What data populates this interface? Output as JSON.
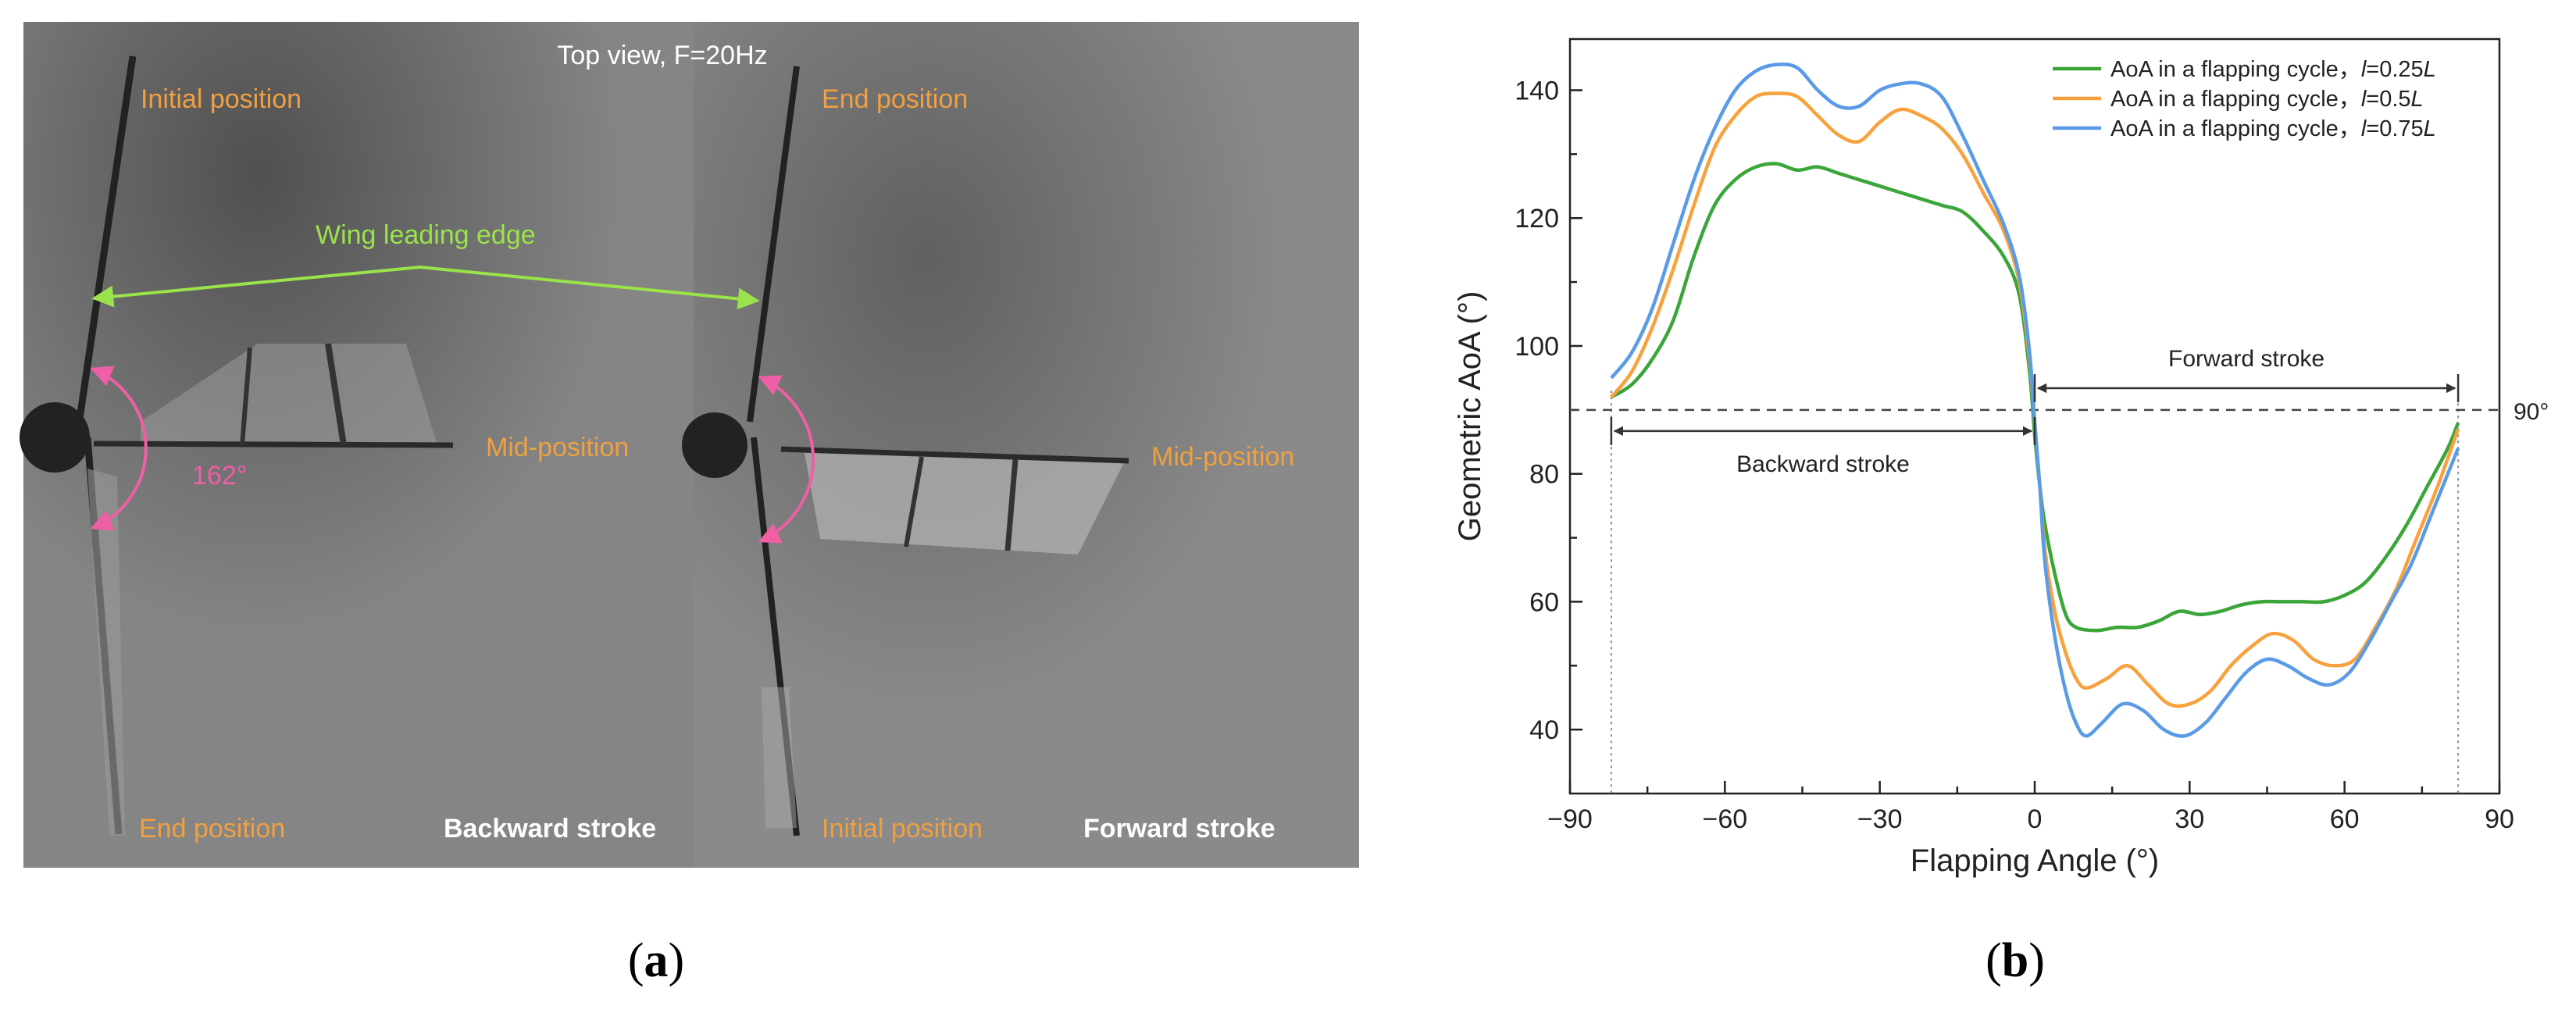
{
  "panel_a": {
    "top_title": "Top view, F=20Hz",
    "left": {
      "initial": "Initial position",
      "end": "End position",
      "mid": "Mid-position",
      "stroke": "Backward stroke",
      "angle": "162°"
    },
    "right": {
      "initial": "Initial position",
      "end": "End position",
      "mid": "Mid-position",
      "stroke": "Forward stroke"
    },
    "leading_edge": "Wing leading edge",
    "caption_letter": "a"
  },
  "panel_b": {
    "caption_letter": "b",
    "ref_line_label": "90°",
    "forward_label": "Forward stroke",
    "backward_label": "Backward stroke"
  },
  "colors": {
    "green": "#3aa63a",
    "orange": "#f7a23e",
    "blue": "#5b9be6",
    "label_orange": "#f0a040",
    "edge_green": "#9be34a",
    "arc_pink": "#ee5fa6"
  },
  "chart_data": {
    "type": "line",
    "xlabel": "Flapping Angle (°)",
    "ylabel": "Geometric AoA (°)",
    "xlim": [
      -90,
      90
    ],
    "ylim": [
      30,
      148
    ],
    "xticks": [
      -90,
      -60,
      -30,
      0,
      30,
      60,
      90
    ],
    "yticks": [
      40,
      60,
      80,
      100,
      120,
      140
    ],
    "reference_y": 90,
    "grid": false,
    "legend_position": "top-right",
    "series": [
      {
        "name": "AoA in a flapping cycle，l=0.25L",
        "legend_prefix": "AoA in a flapping cycle，",
        "legend_var": "l",
        "legend_suffix": "=0.25",
        "legend_unit": "L",
        "color": "#3aa63a",
        "points": [
          [
            -82,
            92
          ],
          [
            -78,
            94
          ],
          [
            -74,
            98
          ],
          [
            -70,
            104
          ],
          [
            -66,
            114
          ],
          [
            -62,
            122
          ],
          [
            -58,
            126
          ],
          [
            -54,
            128
          ],
          [
            -50,
            128.5
          ],
          [
            -46,
            127.5
          ],
          [
            -42,
            128
          ],
          [
            -38,
            127
          ],
          [
            -34,
            126
          ],
          [
            -30,
            125
          ],
          [
            -26,
            124
          ],
          [
            -22,
            123
          ],
          [
            -18,
            122
          ],
          [
            -14,
            121
          ],
          [
            -10,
            118
          ],
          [
            -6,
            114
          ],
          [
            -3,
            108
          ],
          [
            -1,
            96
          ],
          [
            0,
            86
          ],
          [
            1,
            78
          ],
          [
            2,
            72
          ],
          [
            4,
            64
          ],
          [
            6,
            58
          ],
          [
            8,
            56
          ],
          [
            12,
            55.5
          ],
          [
            16,
            56
          ],
          [
            20,
            56
          ],
          [
            24,
            57
          ],
          [
            28,
            58.5
          ],
          [
            32,
            58
          ],
          [
            36,
            58.5
          ],
          [
            40,
            59.5
          ],
          [
            44,
            60
          ],
          [
            48,
            60
          ],
          [
            52,
            60
          ],
          [
            56,
            60
          ],
          [
            60,
            61
          ],
          [
            64,
            63
          ],
          [
            68,
            67
          ],
          [
            72,
            72
          ],
          [
            76,
            78
          ],
          [
            80,
            84
          ],
          [
            82,
            88
          ]
        ]
      },
      {
        "name": "AoA in a flapping cycle，l=0.5L",
        "legend_prefix": "AoA in a flapping cycle，",
        "legend_var": "l",
        "legend_suffix": "=0.5",
        "legend_unit": "L",
        "color": "#f7a23e",
        "points": [
          [
            -82,
            92
          ],
          [
            -78,
            96
          ],
          [
            -74,
            103
          ],
          [
            -70,
            112
          ],
          [
            -66,
            122
          ],
          [
            -62,
            131
          ],
          [
            -58,
            136
          ],
          [
            -54,
            139
          ],
          [
            -50,
            139.5
          ],
          [
            -46,
            139
          ],
          [
            -42,
            136
          ],
          [
            -38,
            133
          ],
          [
            -34,
            132
          ],
          [
            -30,
            135
          ],
          [
            -26,
            137
          ],
          [
            -22,
            136
          ],
          [
            -18,
            134
          ],
          [
            -14,
            130
          ],
          [
            -10,
            124
          ],
          [
            -6,
            118
          ],
          [
            -3,
            110
          ],
          [
            -1,
            98
          ],
          [
            0,
            88
          ],
          [
            1,
            78
          ],
          [
            2,
            68
          ],
          [
            4,
            58
          ],
          [
            6,
            52
          ],
          [
            8,
            48
          ],
          [
            10,
            46.5
          ],
          [
            14,
            48
          ],
          [
            18,
            50
          ],
          [
            22,
            47
          ],
          [
            26,
            44
          ],
          [
            30,
            44
          ],
          [
            34,
            46
          ],
          [
            38,
            50
          ],
          [
            42,
            53
          ],
          [
            46,
            55
          ],
          [
            50,
            54
          ],
          [
            54,
            51
          ],
          [
            58,
            50
          ],
          [
            62,
            51
          ],
          [
            66,
            56
          ],
          [
            70,
            62
          ],
          [
            74,
            70
          ],
          [
            78,
            78
          ],
          [
            82,
            87
          ]
        ]
      },
      {
        "name": "AoA in a flapping cycle，l=0.75L",
        "legend_prefix": "AoA in a flapping cycle，",
        "legend_var": "l",
        "legend_suffix": "=0.75",
        "legend_unit": "L",
        "color": "#5b9be6",
        "points": [
          [
            -82,
            95
          ],
          [
            -78,
            99
          ],
          [
            -74,
            106
          ],
          [
            -70,
            116
          ],
          [
            -66,
            126
          ],
          [
            -62,
            134
          ],
          [
            -58,
            140
          ],
          [
            -54,
            143
          ],
          [
            -50,
            144
          ],
          [
            -46,
            143.5
          ],
          [
            -42,
            140
          ],
          [
            -38,
            137.5
          ],
          [
            -34,
            137.5
          ],
          [
            -30,
            140
          ],
          [
            -26,
            141
          ],
          [
            -22,
            141
          ],
          [
            -18,
            139
          ],
          [
            -14,
            133
          ],
          [
            -10,
            126
          ],
          [
            -6,
            119
          ],
          [
            -3,
            111
          ],
          [
            -1,
            99
          ],
          [
            0,
            88
          ],
          [
            1,
            78
          ],
          [
            2,
            66
          ],
          [
            4,
            54
          ],
          [
            6,
            46
          ],
          [
            8,
            41
          ],
          [
            10,
            39
          ],
          [
            13,
            41
          ],
          [
            17,
            44
          ],
          [
            21,
            43
          ],
          [
            25,
            40
          ],
          [
            29,
            39
          ],
          [
            33,
            41
          ],
          [
            37,
            45
          ],
          [
            41,
            49
          ],
          [
            45,
            51
          ],
          [
            49,
            50
          ],
          [
            53,
            48
          ],
          [
            57,
            47
          ],
          [
            61,
            49
          ],
          [
            65,
            54
          ],
          [
            69,
            60
          ],
          [
            73,
            66
          ],
          [
            77,
            74
          ],
          [
            81,
            82
          ],
          [
            82,
            84
          ]
        ]
      }
    ]
  }
}
